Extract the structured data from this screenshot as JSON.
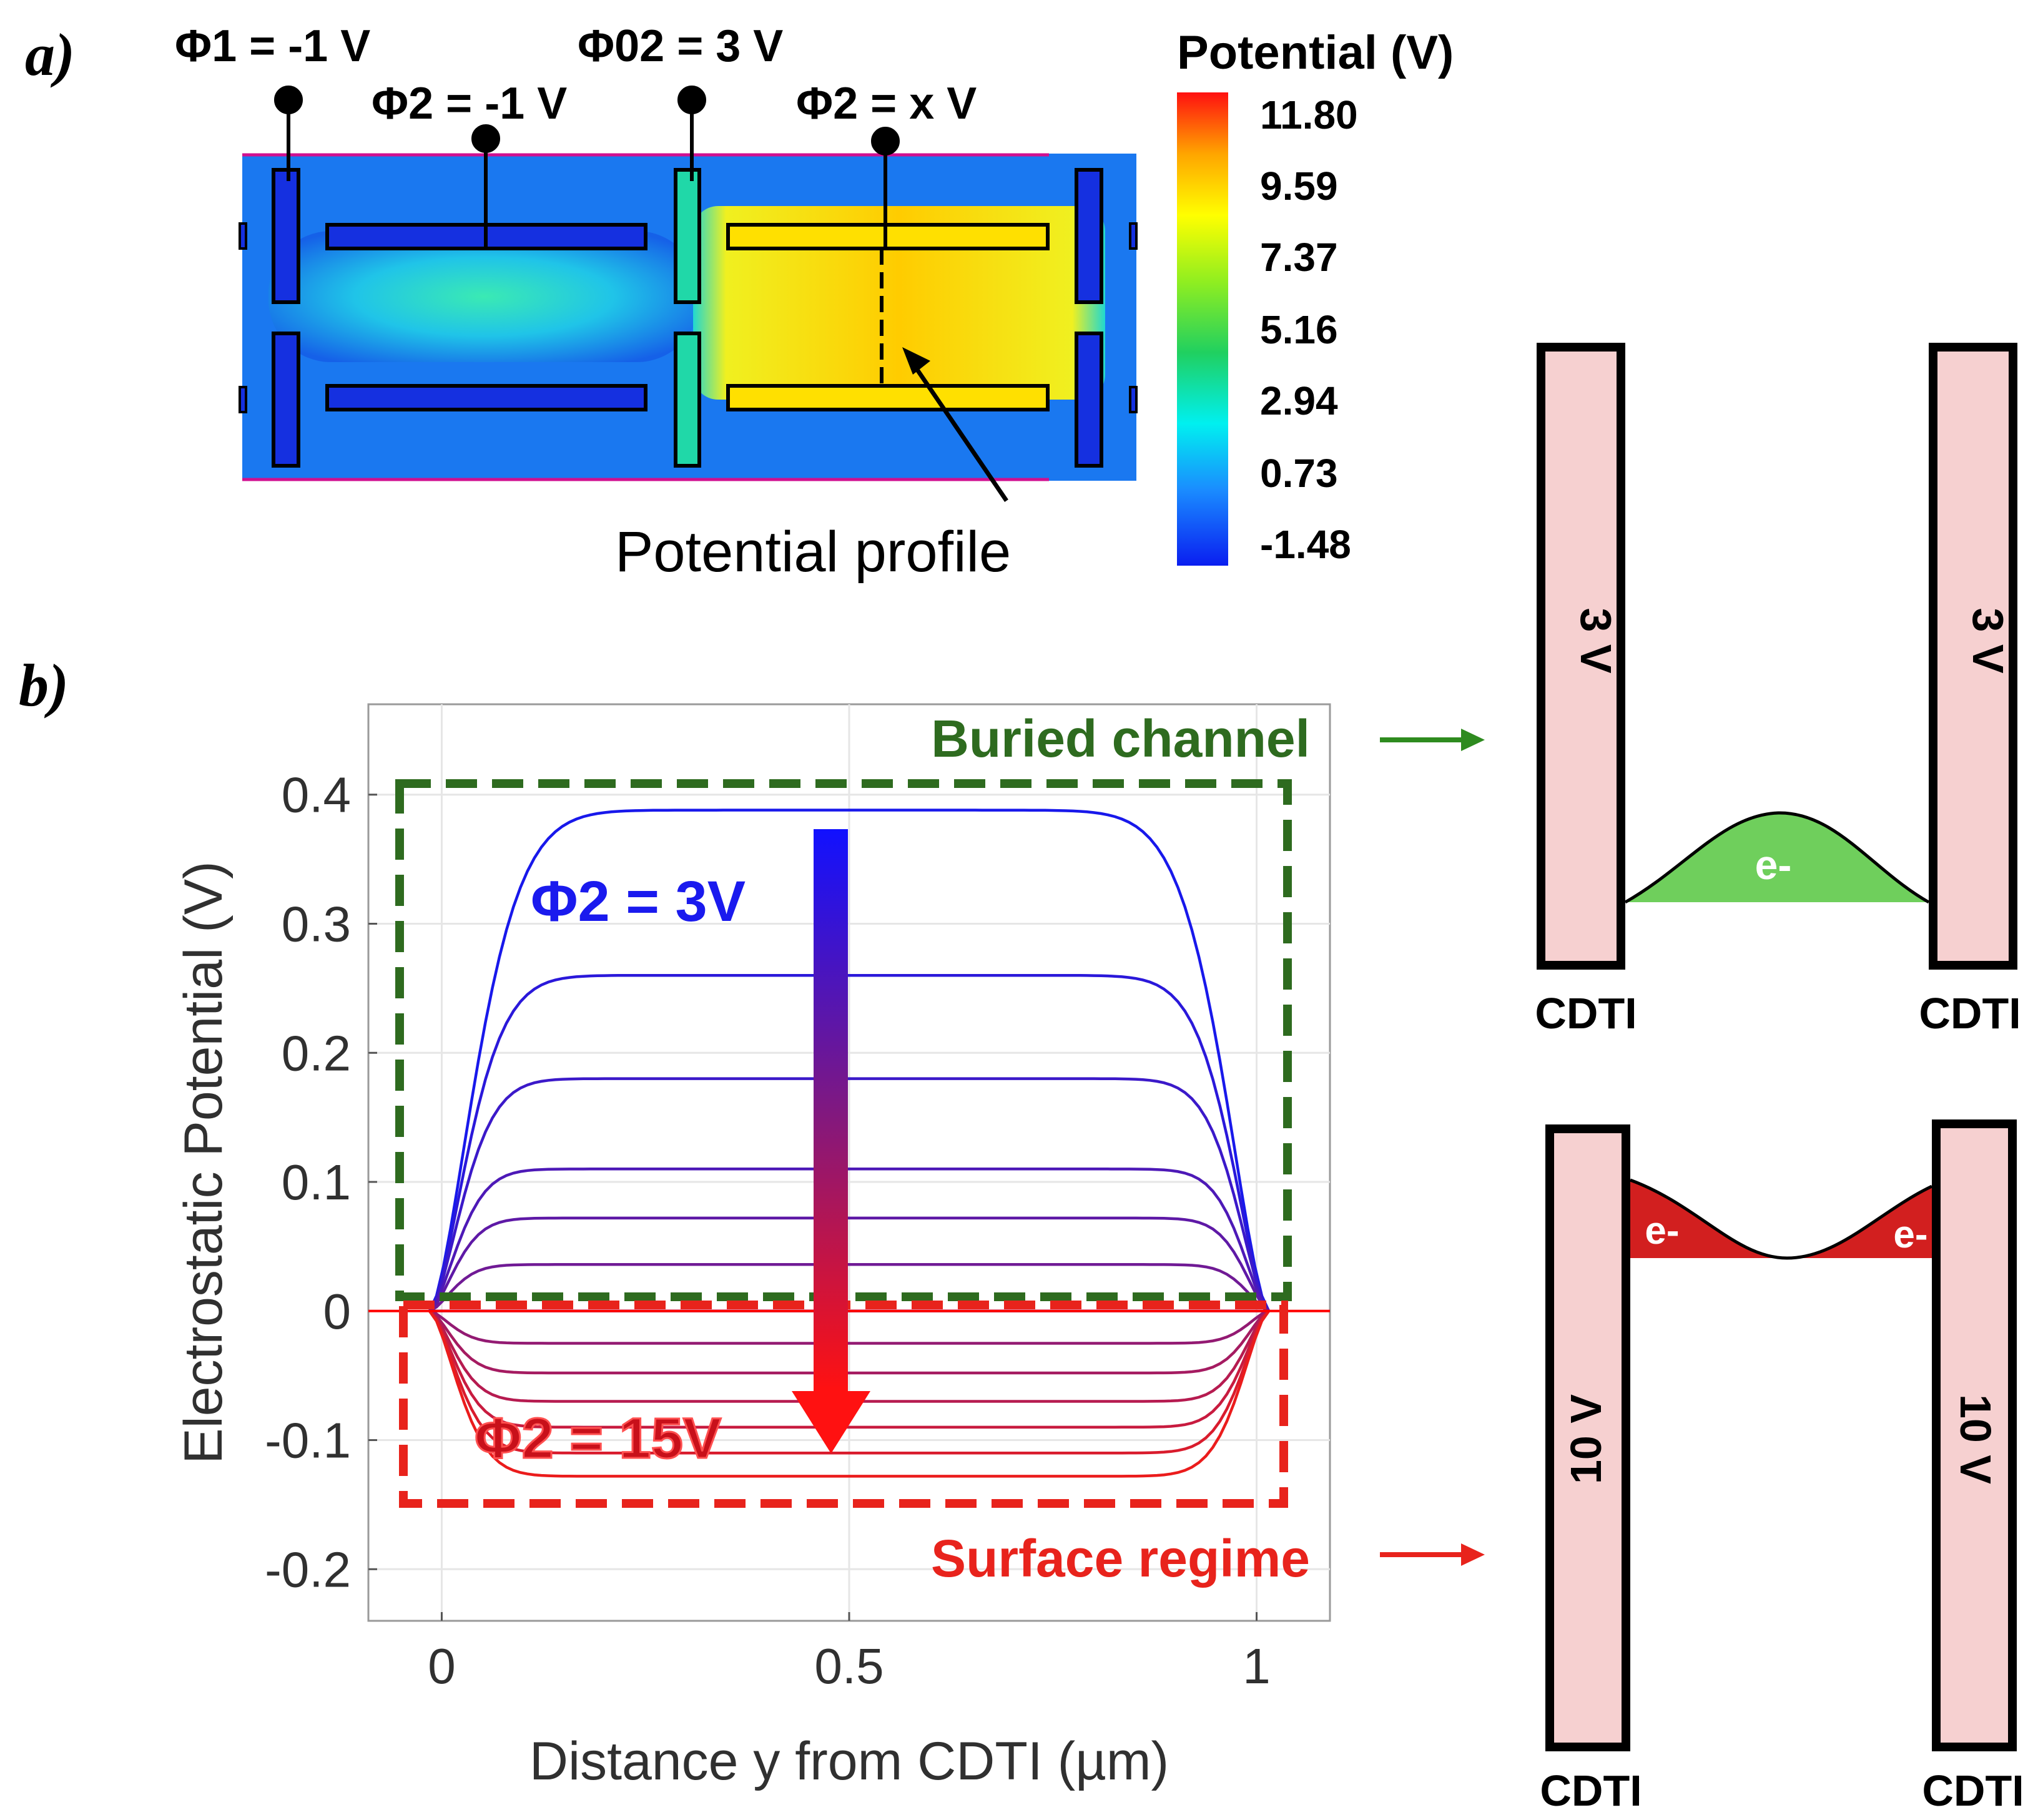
{
  "panel_a": {
    "label": "a)",
    "gate_labels": {
      "phi1": "Φ1 = -1 V",
      "phi2_left": "Φ2 = -1 V",
      "phi02": "Φ02 = 3 V",
      "phi2_right": "Φ2 = x V"
    },
    "profile_label": "Potential profile",
    "colorbar": {
      "title": "Potential (V)",
      "ticks": [
        "11.80",
        "9.59",
        "7.37",
        "5.16",
        "2.94",
        "0.73",
        "-1.48"
      ]
    }
  },
  "panel_b": {
    "label": "b)",
    "buried_label": "Buried channel",
    "surface_label": "Surface regime",
    "arrow_top_label": "Φ2 = 3V",
    "arrow_bottom_label": "Φ2 = 15V"
  },
  "schematics": {
    "top": {
      "left_wall": "3 V",
      "right_wall": "3 V",
      "left_label": "CDTI",
      "right_label": "CDTI",
      "carrier": "e-"
    },
    "bottom": {
      "left_wall": "10 V",
      "right_wall": "10 V",
      "left_label": "CDTI",
      "right_label": "CDTI",
      "carrier_left": "e-",
      "carrier_right": "e-"
    }
  },
  "colors": {
    "blue": "#1a1aee",
    "red": "#e8231c",
    "green_box": "#2e6b1f",
    "green_fill": "#6fcf5c",
    "wall_fill": "#f6d0d0"
  },
  "chart_data": {
    "type": "line",
    "xlabel": "Distance y from CDTI (µm)",
    "ylabel": "Electrostatic Potential (V)",
    "xlim": [
      -0.09,
      1.09
    ],
    "ylim": [
      -0.24,
      0.47
    ],
    "xticks": [
      0,
      0.5,
      1
    ],
    "xtick_labels": [
      "0",
      "0.5",
      "1"
    ],
    "yticks": [
      0.4,
      0.3,
      0.2,
      0.1,
      0,
      -0.1,
      -0.2
    ],
    "ytick_labels": [
      "0.4",
      "0.3",
      "0.2",
      "0.1",
      "0",
      "-0.1",
      "-0.2"
    ],
    "grid": true,
    "curve_x_range": [
      -0.015,
      1.015
    ],
    "series": [
      {
        "plateau": 0.388
      },
      {
        "plateau": 0.26
      },
      {
        "plateau": 0.18
      },
      {
        "plateau": 0.11
      },
      {
        "plateau": 0.072
      },
      {
        "plateau": 0.036
      },
      {
        "plateau": 0.0
      },
      {
        "plateau": -0.025
      },
      {
        "plateau": -0.048
      },
      {
        "plateau": -0.07
      },
      {
        "plateau": -0.09
      },
      {
        "plateau": -0.11
      },
      {
        "plateau": -0.128
      }
    ]
  }
}
